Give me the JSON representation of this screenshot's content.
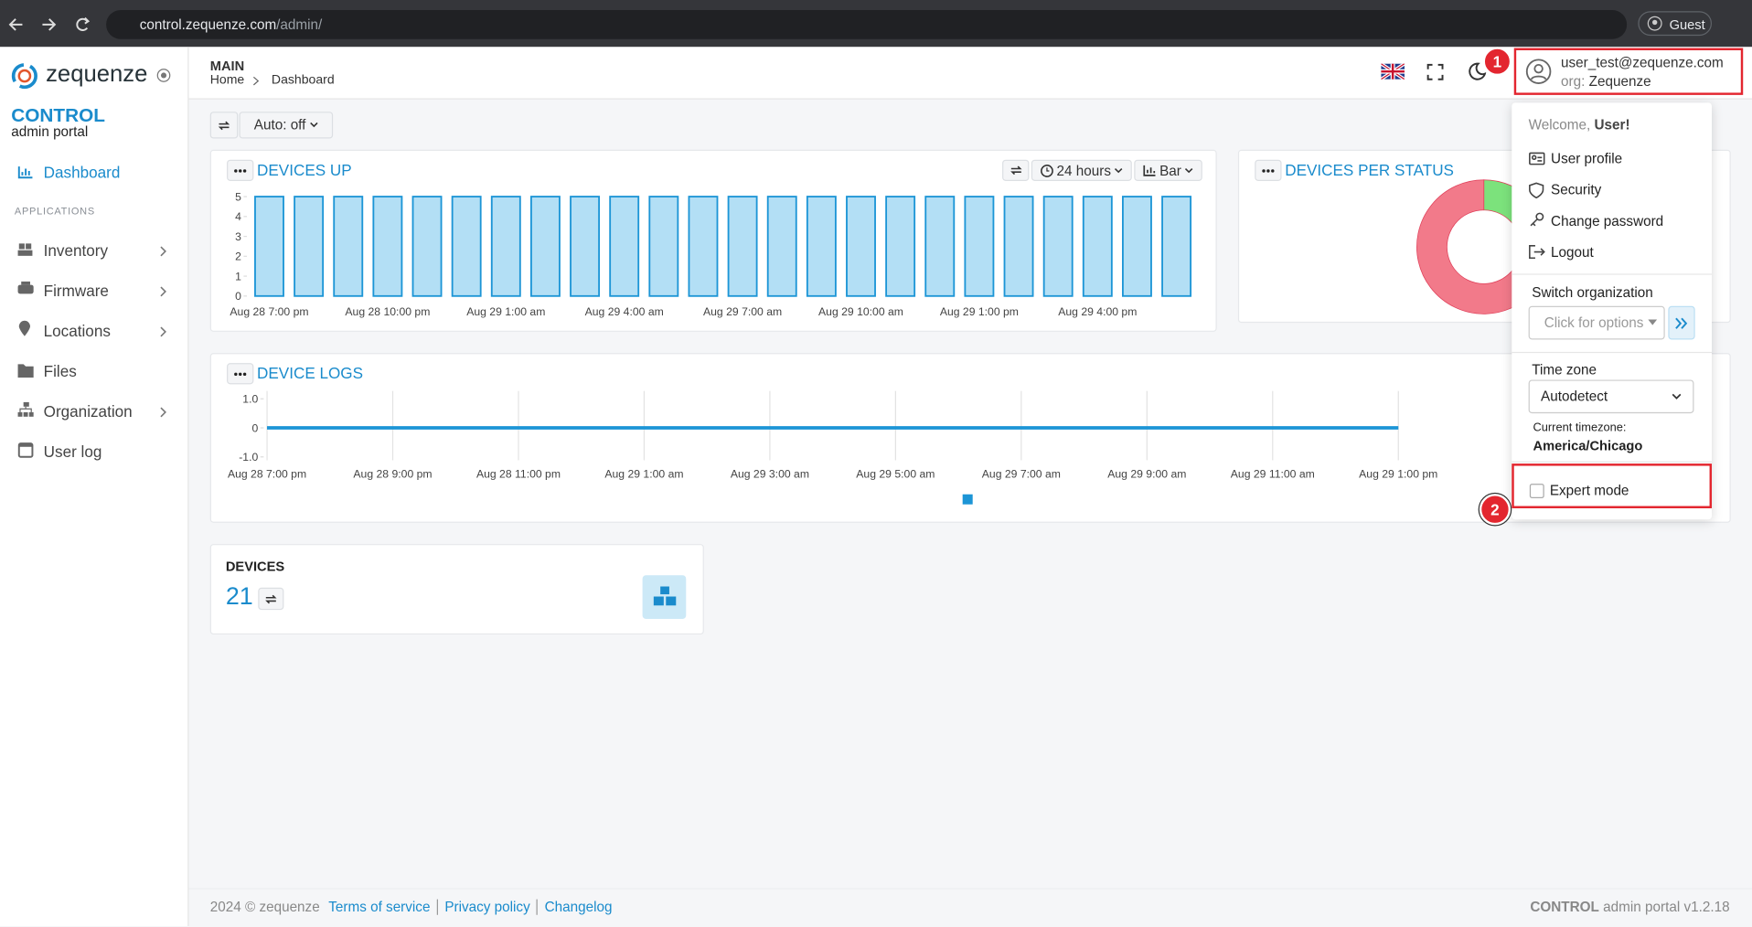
{
  "browser": {
    "url_host": "control.zequenze.com",
    "url_path": "/admin/",
    "profile": "Guest"
  },
  "sidebar": {
    "logo": "zequenze",
    "brand": "CONTROL",
    "subtitle": "admin portal",
    "active": "Dashboard",
    "section": "APPLICATIONS",
    "nav": [
      "Inventory",
      "Firmware",
      "Locations",
      "Files",
      "Organization",
      "User log"
    ]
  },
  "header": {
    "section": "MAIN",
    "breadcrumbs": [
      "Home",
      "Dashboard"
    ],
    "user_email": "user_test@zequenze.com",
    "org_label": "org:",
    "org": "Zequenze"
  },
  "toolbar": {
    "auto": "Auto: off"
  },
  "widgets": {
    "devices_up": {
      "range": "24 hours",
      "view": "Bar"
    },
    "devices": {
      "title": "DEVICES",
      "count": 21
    }
  },
  "chart_data": [
    {
      "type": "bar",
      "title": "DEVICES UP",
      "color": "#b3dff5",
      "edge_color": "#1c95d6",
      "categories": [
        "Aug 28 7:00 pm",
        null,
        null,
        "Aug 28 10:00 pm",
        null,
        null,
        "Aug 29 1:00 am",
        null,
        null,
        "Aug 29 4:00 am",
        null,
        null,
        "Aug 29 7:00 am",
        null,
        null,
        "Aug 29 10:00 am",
        null,
        null,
        "Aug 29 1:00 pm",
        null,
        null,
        "Aug 29 4:00 pm",
        null,
        null
      ],
      "values": [
        5,
        5,
        5,
        5,
        5,
        5,
        5,
        5,
        5,
        5,
        5,
        5,
        5,
        5,
        5,
        5,
        5,
        5,
        5,
        5,
        5,
        5,
        5,
        5
      ],
      "ylim": [
        0,
        5
      ],
      "yticks": [
        0,
        1,
        2,
        3,
        4,
        5
      ]
    },
    {
      "type": "pie",
      "title": "DEVICES PER STATUS",
      "donut": true,
      "values": [
        3,
        18
      ],
      "colors": [
        "#7ce27c",
        "#f27a8a"
      ]
    },
    {
      "type": "line",
      "title": "DEVICE LOGS",
      "grid": true,
      "categories": [
        "Aug 28 7:00 pm",
        "Aug 28 9:00 pm",
        "Aug 28 11:00 pm",
        "Aug 29 1:00 am",
        "Aug 29 3:00 am",
        "Aug 29 5:00 am",
        "Aug 29 7:00 am",
        "Aug 29 9:00 am",
        "Aug 29 11:00 am",
        "Aug 29 1:00 pm"
      ],
      "series": [
        {
          "color": "#1c95d6",
          "values": [
            0,
            0,
            0,
            0,
            0,
            0,
            0,
            0,
            0,
            0
          ]
        }
      ],
      "ylim": [
        -1,
        1
      ],
      "yticks": [
        {
          "value": -1,
          "label": "-1.0"
        },
        0,
        {
          "value": 1,
          "label": "1.0"
        }
      ]
    }
  ],
  "user_menu": {
    "welcome": "Welcome,",
    "user": "User!",
    "items": [
      "User profile",
      "Security",
      "Change password",
      "Logout"
    ],
    "switch_org": "Switch organization",
    "org_placeholder": "Click for options",
    "timezone_label": "Time zone",
    "timezone": "Autodetect",
    "current_tz_label": "Current timezone:",
    "current_tz": "America/Chicago",
    "expert_mode": "Expert mode"
  },
  "annotations": [
    "1",
    "2"
  ],
  "footer": {
    "copyright": "2024 © zequenze",
    "links": [
      "Terms of service",
      "Privacy policy",
      "Changelog"
    ],
    "brand": "CONTROL",
    "version": "admin portal v1.2.18"
  }
}
